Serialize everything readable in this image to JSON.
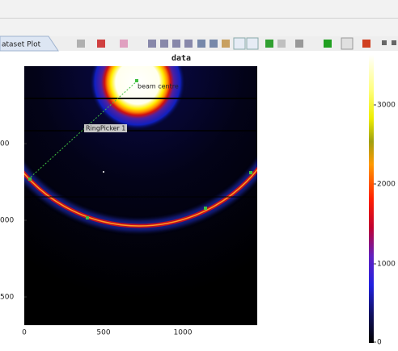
{
  "tab": {
    "title": "ataset Plot"
  },
  "plot": {
    "title": "data",
    "y_tick_labels": [
      "00",
      "000",
      "500"
    ],
    "x_tick_labels": [
      "0",
      "500",
      "1000"
    ],
    "annotations": {
      "beam_centre": "beam centre",
      "ring_picker": "RingPicker 1"
    }
  },
  "colorbar": {
    "tick_labels": [
      "3000",
      "2000",
      "1000",
      "0"
    ]
  }
}
